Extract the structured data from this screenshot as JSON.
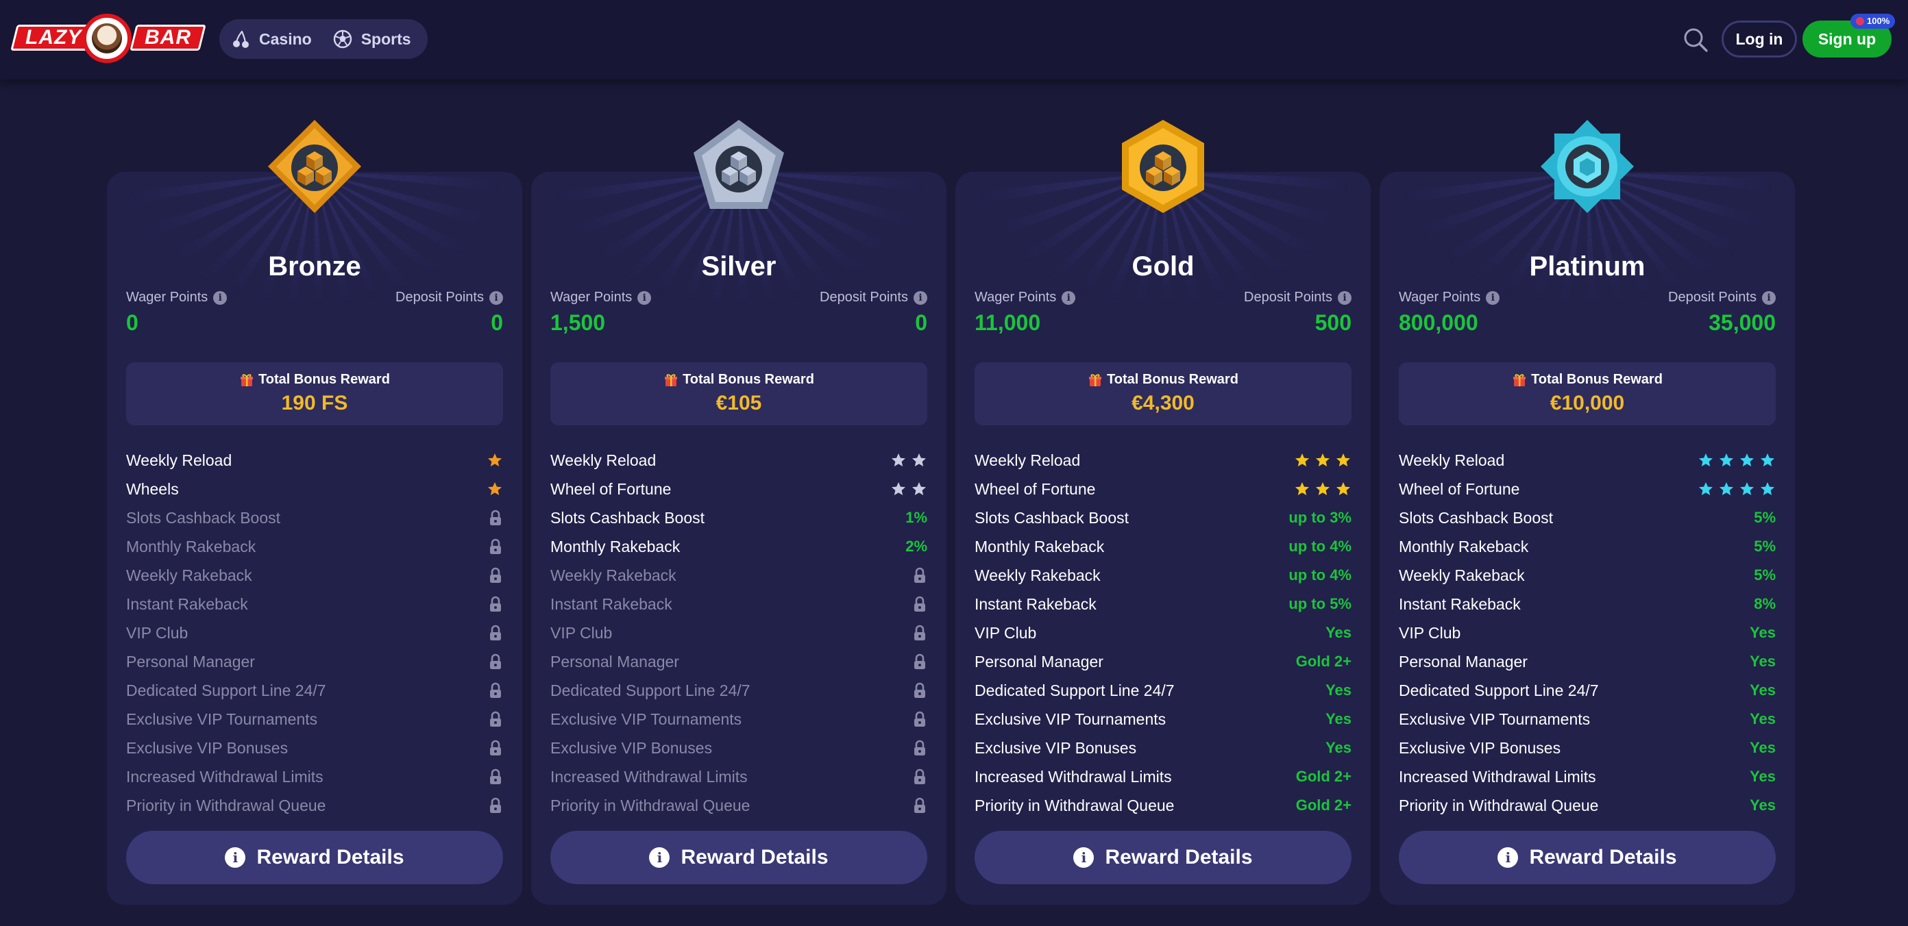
{
  "header": {
    "logo": {
      "word1": "LAZY",
      "word2": "BAR"
    },
    "nav": [
      {
        "label": "Casino",
        "icon": "cherry-icon"
      },
      {
        "label": "Sports",
        "icon": "soccer-ball-icon"
      }
    ],
    "login_label": "Log in",
    "signup_label": "Sign up",
    "signup_badge": "100%"
  },
  "colors": {
    "background": "#1a1938",
    "card": "#22214a",
    "green": "#19c63a",
    "gold": "#f2b92b",
    "signup": "#10a62c"
  },
  "labels": {
    "wager_points": "Wager Points",
    "deposit_points": "Deposit Points",
    "total_bonus_reward": "Total Bonus Reward",
    "reward_details": "Reward Details",
    "info_glyph": "i"
  },
  "tiers": [
    {
      "name": "Bronze",
      "icon": "bronze-diamond-badge-icon",
      "wager_points": "0",
      "deposit_points": "0",
      "bonus": "190 FS",
      "features": [
        {
          "name": "Weekly Reload",
          "stars": 1,
          "star_color": "#f29a1f"
        },
        {
          "name": "Wheels",
          "stars": 1,
          "star_color": "#f29a1f"
        },
        {
          "name": "Slots Cashback Boost",
          "locked": true
        },
        {
          "name": "Monthly Rakeback",
          "locked": true
        },
        {
          "name": "Weekly Rakeback",
          "locked": true
        },
        {
          "name": "Instant Rakeback",
          "locked": true
        },
        {
          "name": "VIP Club",
          "locked": true
        },
        {
          "name": "Personal Manager",
          "locked": true
        },
        {
          "name": "Dedicated Support Line 24/7",
          "locked": true
        },
        {
          "name": "Exclusive VIP Tournaments",
          "locked": true
        },
        {
          "name": "Exclusive VIP Bonuses",
          "locked": true
        },
        {
          "name": "Increased Withdrawal Limits",
          "locked": true
        },
        {
          "name": "Priority in Withdrawal Queue",
          "locked": true
        }
      ]
    },
    {
      "name": "Silver",
      "icon": "silver-pentagon-badge-icon",
      "wager_points": "1,500",
      "deposit_points": "0",
      "bonus": "€105",
      "features": [
        {
          "name": "Weekly Reload",
          "stars": 2,
          "star_color": "#c9cde0"
        },
        {
          "name": "Wheel of Fortune",
          "stars": 2,
          "star_color": "#c9cde0"
        },
        {
          "name": "Slots Cashback Boost",
          "value": "1%"
        },
        {
          "name": "Monthly Rakeback",
          "value": "2%"
        },
        {
          "name": "Weekly Rakeback",
          "locked": true
        },
        {
          "name": "Instant Rakeback",
          "locked": true
        },
        {
          "name": "VIP Club",
          "locked": true
        },
        {
          "name": "Personal Manager",
          "locked": true
        },
        {
          "name": "Dedicated Support Line 24/7",
          "locked": true
        },
        {
          "name": "Exclusive VIP Tournaments",
          "locked": true
        },
        {
          "name": "Exclusive VIP Bonuses",
          "locked": true
        },
        {
          "name": "Increased Withdrawal Limits",
          "locked": true
        },
        {
          "name": "Priority in Withdrawal Queue",
          "locked": true
        }
      ]
    },
    {
      "name": "Gold",
      "icon": "gold-hexagon-badge-icon",
      "wager_points": "11,000",
      "deposit_points": "500",
      "bonus": "€4,300",
      "features": [
        {
          "name": "Weekly Reload",
          "stars": 3,
          "star_color": "#f5c518"
        },
        {
          "name": "Wheel of Fortune",
          "stars": 3,
          "star_color": "#f5c518"
        },
        {
          "name": "Slots Cashback Boost",
          "value": "up to 3%"
        },
        {
          "name": "Monthly Rakeback",
          "value": "up to 4%"
        },
        {
          "name": "Weekly Rakeback",
          "value": "up to 4%"
        },
        {
          "name": "Instant Rakeback",
          "value": "up to 5%"
        },
        {
          "name": "VIP Club",
          "value": "Yes"
        },
        {
          "name": "Personal Manager",
          "value": "Gold 2+"
        },
        {
          "name": "Dedicated Support Line 24/7",
          "value": "Yes"
        },
        {
          "name": "Exclusive VIP Tournaments",
          "value": "Yes"
        },
        {
          "name": "Exclusive VIP Bonuses",
          "value": "Yes"
        },
        {
          "name": "Increased Withdrawal Limits",
          "value": "Gold 2+"
        },
        {
          "name": "Priority in Withdrawal Queue",
          "value": "Gold 2+"
        }
      ]
    },
    {
      "name": "Platinum",
      "icon": "platinum-star-badge-icon",
      "wager_points": "800,000",
      "deposit_points": "35,000",
      "bonus": "€10,000",
      "features": [
        {
          "name": "Weekly Reload",
          "stars": 4,
          "star_color": "#3ad6f0"
        },
        {
          "name": "Wheel of Fortune",
          "stars": 4,
          "star_color": "#3ad6f0"
        },
        {
          "name": "Slots Cashback Boost",
          "value": "5%"
        },
        {
          "name": "Monthly Rakeback",
          "value": "5%"
        },
        {
          "name": "Weekly Rakeback",
          "value": "5%"
        },
        {
          "name": "Instant Rakeback",
          "value": "8%"
        },
        {
          "name": "VIP Club",
          "value": "Yes"
        },
        {
          "name": "Personal Manager",
          "value": "Yes"
        },
        {
          "name": "Dedicated Support Line 24/7",
          "value": "Yes"
        },
        {
          "name": "Exclusive VIP Tournaments",
          "value": "Yes"
        },
        {
          "name": "Exclusive VIP Bonuses",
          "value": "Yes"
        },
        {
          "name": "Increased Withdrawal Limits",
          "value": "Yes"
        },
        {
          "name": "Priority in Withdrawal Queue",
          "value": "Yes"
        }
      ]
    }
  ]
}
